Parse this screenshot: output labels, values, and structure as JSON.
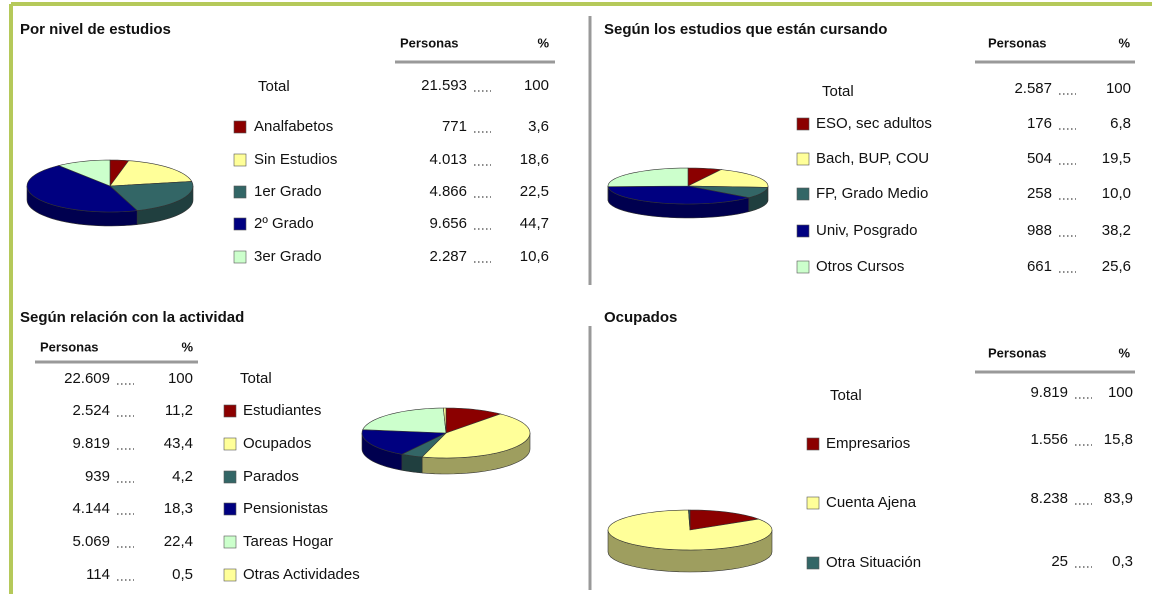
{
  "chart_data": [
    {
      "type": "pie",
      "title": "Por nivel de estudios",
      "column_labels": [
        "Personas",
        "%"
      ],
      "total": {
        "label": "Total",
        "persons": "21.593",
        "percent": 100
      },
      "categories": [
        "Analfabetos",
        "Sin Estudios",
        "1er Grado",
        "2º Grado",
        "3er Grado"
      ],
      "persons": [
        "771",
        "4.013",
        "4.866",
        "9.656",
        "2.287"
      ],
      "values": [
        3.6,
        18.6,
        22.5,
        44.7,
        10.6
      ],
      "value_labels": [
        "3,6",
        "18,6",
        "22,5",
        "44,7",
        "10,6"
      ],
      "colors": [
        "#8b0000",
        "#ffff99",
        "#336666",
        "#000080",
        "#ccffcc"
      ]
    },
    {
      "type": "pie",
      "title": "Según los estudios que están cursando",
      "column_labels": [
        "Personas",
        "%"
      ],
      "total": {
        "label": "Total",
        "persons": "2.587",
        "percent": 100
      },
      "categories": [
        "ESO, sec adultos",
        "Bach, BUP, COU",
        "FP, Grado Medio",
        "Univ, Posgrado",
        "Otros Cursos"
      ],
      "persons": [
        "176",
        "504",
        "258",
        "988",
        "661"
      ],
      "values": [
        6.8,
        19.5,
        10.0,
        38.2,
        25.6
      ],
      "value_labels": [
        "6,8",
        "19,5",
        "10,0",
        "38,2",
        "25,6"
      ],
      "colors": [
        "#8b0000",
        "#ffff99",
        "#336666",
        "#000080",
        "#ccffcc"
      ]
    },
    {
      "type": "pie",
      "title": "Según relación con la actividad",
      "column_labels": [
        "Personas",
        "%"
      ],
      "total": {
        "label": "Total",
        "persons": "22.609",
        "percent": 100
      },
      "categories": [
        "Estudiantes",
        "Ocupados",
        "Parados",
        "Pensionistas",
        "Tareas Hogar",
        "Otras Actividades"
      ],
      "persons": [
        "2.524",
        "9.819",
        "939",
        "4.144",
        "5.069",
        "114"
      ],
      "values": [
        11.2,
        43.4,
        4.2,
        18.3,
        22.4,
        0.5
      ],
      "value_labels": [
        "11,2",
        "43,4",
        "4,2",
        "18,3",
        "22,4",
        "0,5"
      ],
      "colors": [
        "#8b0000",
        "#ffff99",
        "#336666",
        "#000080",
        "#ccffcc",
        "#ffff99"
      ]
    },
    {
      "type": "pie",
      "title": "Ocupados",
      "column_labels": [
        "Personas",
        "%"
      ],
      "total": {
        "label": "Total",
        "persons": "9.819",
        "percent": 100
      },
      "categories": [
        "Empresarios",
        "Cuenta Ajena",
        "Otra Situación"
      ],
      "persons": [
        "1.556",
        "8.238",
        "25"
      ],
      "values": [
        15.8,
        83.9,
        0.3
      ],
      "value_labels": [
        "15,8",
        "83,9",
        "0,3"
      ],
      "colors": [
        "#8b0000",
        "#ffff99",
        "#336666"
      ]
    }
  ]
}
